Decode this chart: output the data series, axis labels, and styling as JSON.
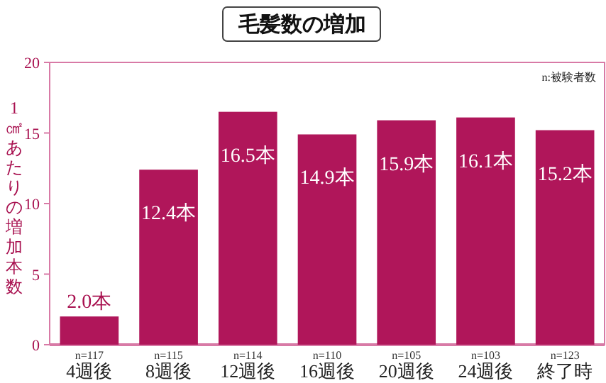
{
  "chart_data": {
    "type": "bar",
    "title": "毛髪数の増加",
    "ylabel": "1㎠あたりの増加本数",
    "categories": [
      "4週後",
      "8週後",
      "12週後",
      "16週後",
      "20週後",
      "24週後",
      "終了時"
    ],
    "values": [
      2.0,
      12.4,
      16.5,
      14.9,
      15.9,
      16.1,
      15.2
    ],
    "color": "#b0165a",
    "value_labels": [
      "2.0本",
      "12.4本",
      "16.5本",
      "14.9本",
      "15.9本",
      "16.1本",
      "15.2本"
    ],
    "ylim": [
      0,
      20
    ],
    "yticks": [
      0,
      5,
      10,
      15,
      20
    ],
    "grid": false,
    "annotations": [
      "n:被験者数",
      "n=117",
      "n=115",
      "n=114",
      "n=110",
      "n=105",
      "n=103",
      "n=123"
    ]
  }
}
